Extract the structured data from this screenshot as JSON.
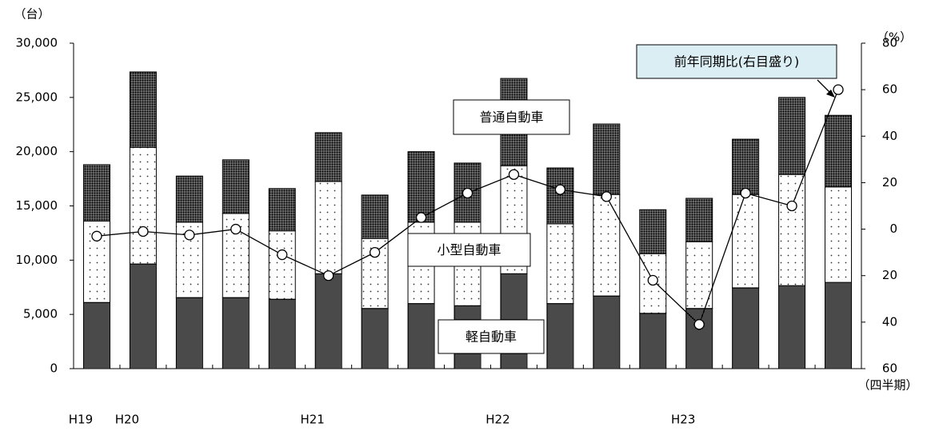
{
  "chart_data": {
    "type": "stacked-bar-line",
    "y_unit_label": "（台）",
    "y2_unit_label": "（%）",
    "x_unit_label": "（四半期）",
    "categories": [
      "H19",
      "H20",
      null,
      null,
      null,
      "H21",
      null,
      null,
      null,
      "H22",
      null,
      null,
      null,
      "H23",
      null,
      null,
      null
    ],
    "series": [
      {
        "name": "軽自動車",
        "color": "#b0b0b0",
        "values": [
          6100,
          9650,
          6550,
          6550,
          6400,
          8750,
          5550,
          6000,
          5800,
          8750,
          6000,
          6700,
          5100,
          5550,
          7450,
          7650,
          7950
        ]
      },
      {
        "name": "小型自動車",
        "color": "#ffffff",
        "values": [
          7500,
          10750,
          6950,
          7750,
          6300,
          8500,
          6450,
          7500,
          7700,
          9950,
          7350,
          9350,
          5500,
          6150,
          8600,
          10250,
          8800
        ]
      },
      {
        "name": "普通自動車",
        "color": "#7a7a7a",
        "values": [
          5200,
          6950,
          4250,
          4950,
          3900,
          4500,
          4000,
          6500,
          5450,
          8050,
          5150,
          6500,
          4050,
          4000,
          5100,
          7100,
          6600
        ]
      },
      {
        "name": "前年同期比(右目盛り)",
        "color": "#000000",
        "axis": "y2",
        "values": [
          -3,
          -1,
          -2.5,
          0,
          -11,
          -20,
          -10,
          5,
          15.5,
          23.5,
          17,
          14,
          -22,
          -41,
          15.5,
          10,
          60
        ]
      }
    ],
    "ylim": [
      0,
      30000
    ],
    "yticks": [
      0,
      {
        "value": 5000,
        "label": "5,000"
      },
      {
        "value": 10000,
        "label": "10,000"
      },
      {
        "value": 15000,
        "label": "15,000"
      },
      {
        "value": 20000,
        "label": "20,000"
      },
      {
        "value": 25000,
        "label": "25,000"
      },
      {
        "value": 30000,
        "label": "30,000"
      }
    ],
    "y2lim": [
      -60,
      80
    ],
    "y2ticks": [
      {
        "value": -60,
        "label": "60"
      },
      {
        "value": -40,
        "label": "40"
      },
      {
        "value": -20,
        "label": "20"
      },
      0,
      20,
      40,
      60,
      80
    ],
    "grid": false
  }
}
